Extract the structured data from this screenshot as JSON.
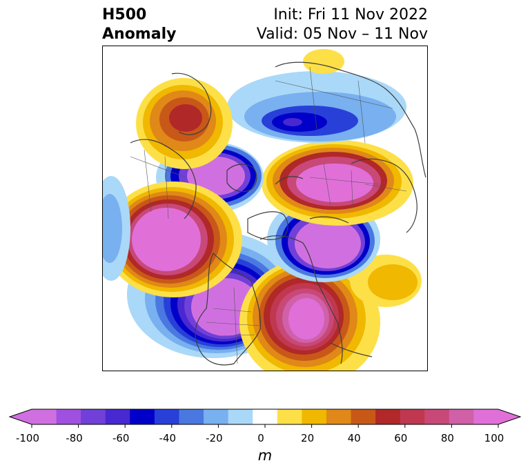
{
  "title": {
    "left_line1": "H500",
    "left_line2": "Anomaly",
    "right_line1": "Init: Fri 11 Nov 2022",
    "right_line2": "Valid: 05 Nov – 11 Nov"
  },
  "colorbar": {
    "unit": "m",
    "range": [
      -100,
      100
    ],
    "extend": "both",
    "ticks": [
      "-100",
      "-80",
      "-60",
      "-40",
      "-20",
      "0",
      "20",
      "40",
      "60",
      "80",
      "100"
    ],
    "colors": [
      "#d070e0",
      "#a050e0",
      "#7040d8",
      "#4828d0",
      "#0000c8",
      "#2840d8",
      "#4a78e0",
      "#78b0f0",
      "#aad8f8",
      "#ffffff",
      "#fde048",
      "#f0b800",
      "#e08818",
      "#c85818",
      "#b02828",
      "#c03850",
      "#c84878",
      "#d060a8",
      "#e070d8"
    ],
    "under_color": "#d070e0",
    "over_color": "#e070d8"
  },
  "map": {
    "projection": "polar stereographic, north pole",
    "anomaly_centers": [
      {
        "sign": "negative",
        "label": "western Canada low"
      },
      {
        "sign": "positive",
        "label": "Bering / eastern Siberia ridge"
      },
      {
        "sign": "negative",
        "label": "North Pacific low"
      },
      {
        "sign": "positive",
        "label": "Russia ridge"
      },
      {
        "sign": "negative",
        "label": "Scandinavia / Europe low"
      },
      {
        "sign": "positive",
        "label": "eastern Canada / Greenland ridge"
      },
      {
        "sign": "negative",
        "label": "Arctic trough"
      }
    ]
  }
}
